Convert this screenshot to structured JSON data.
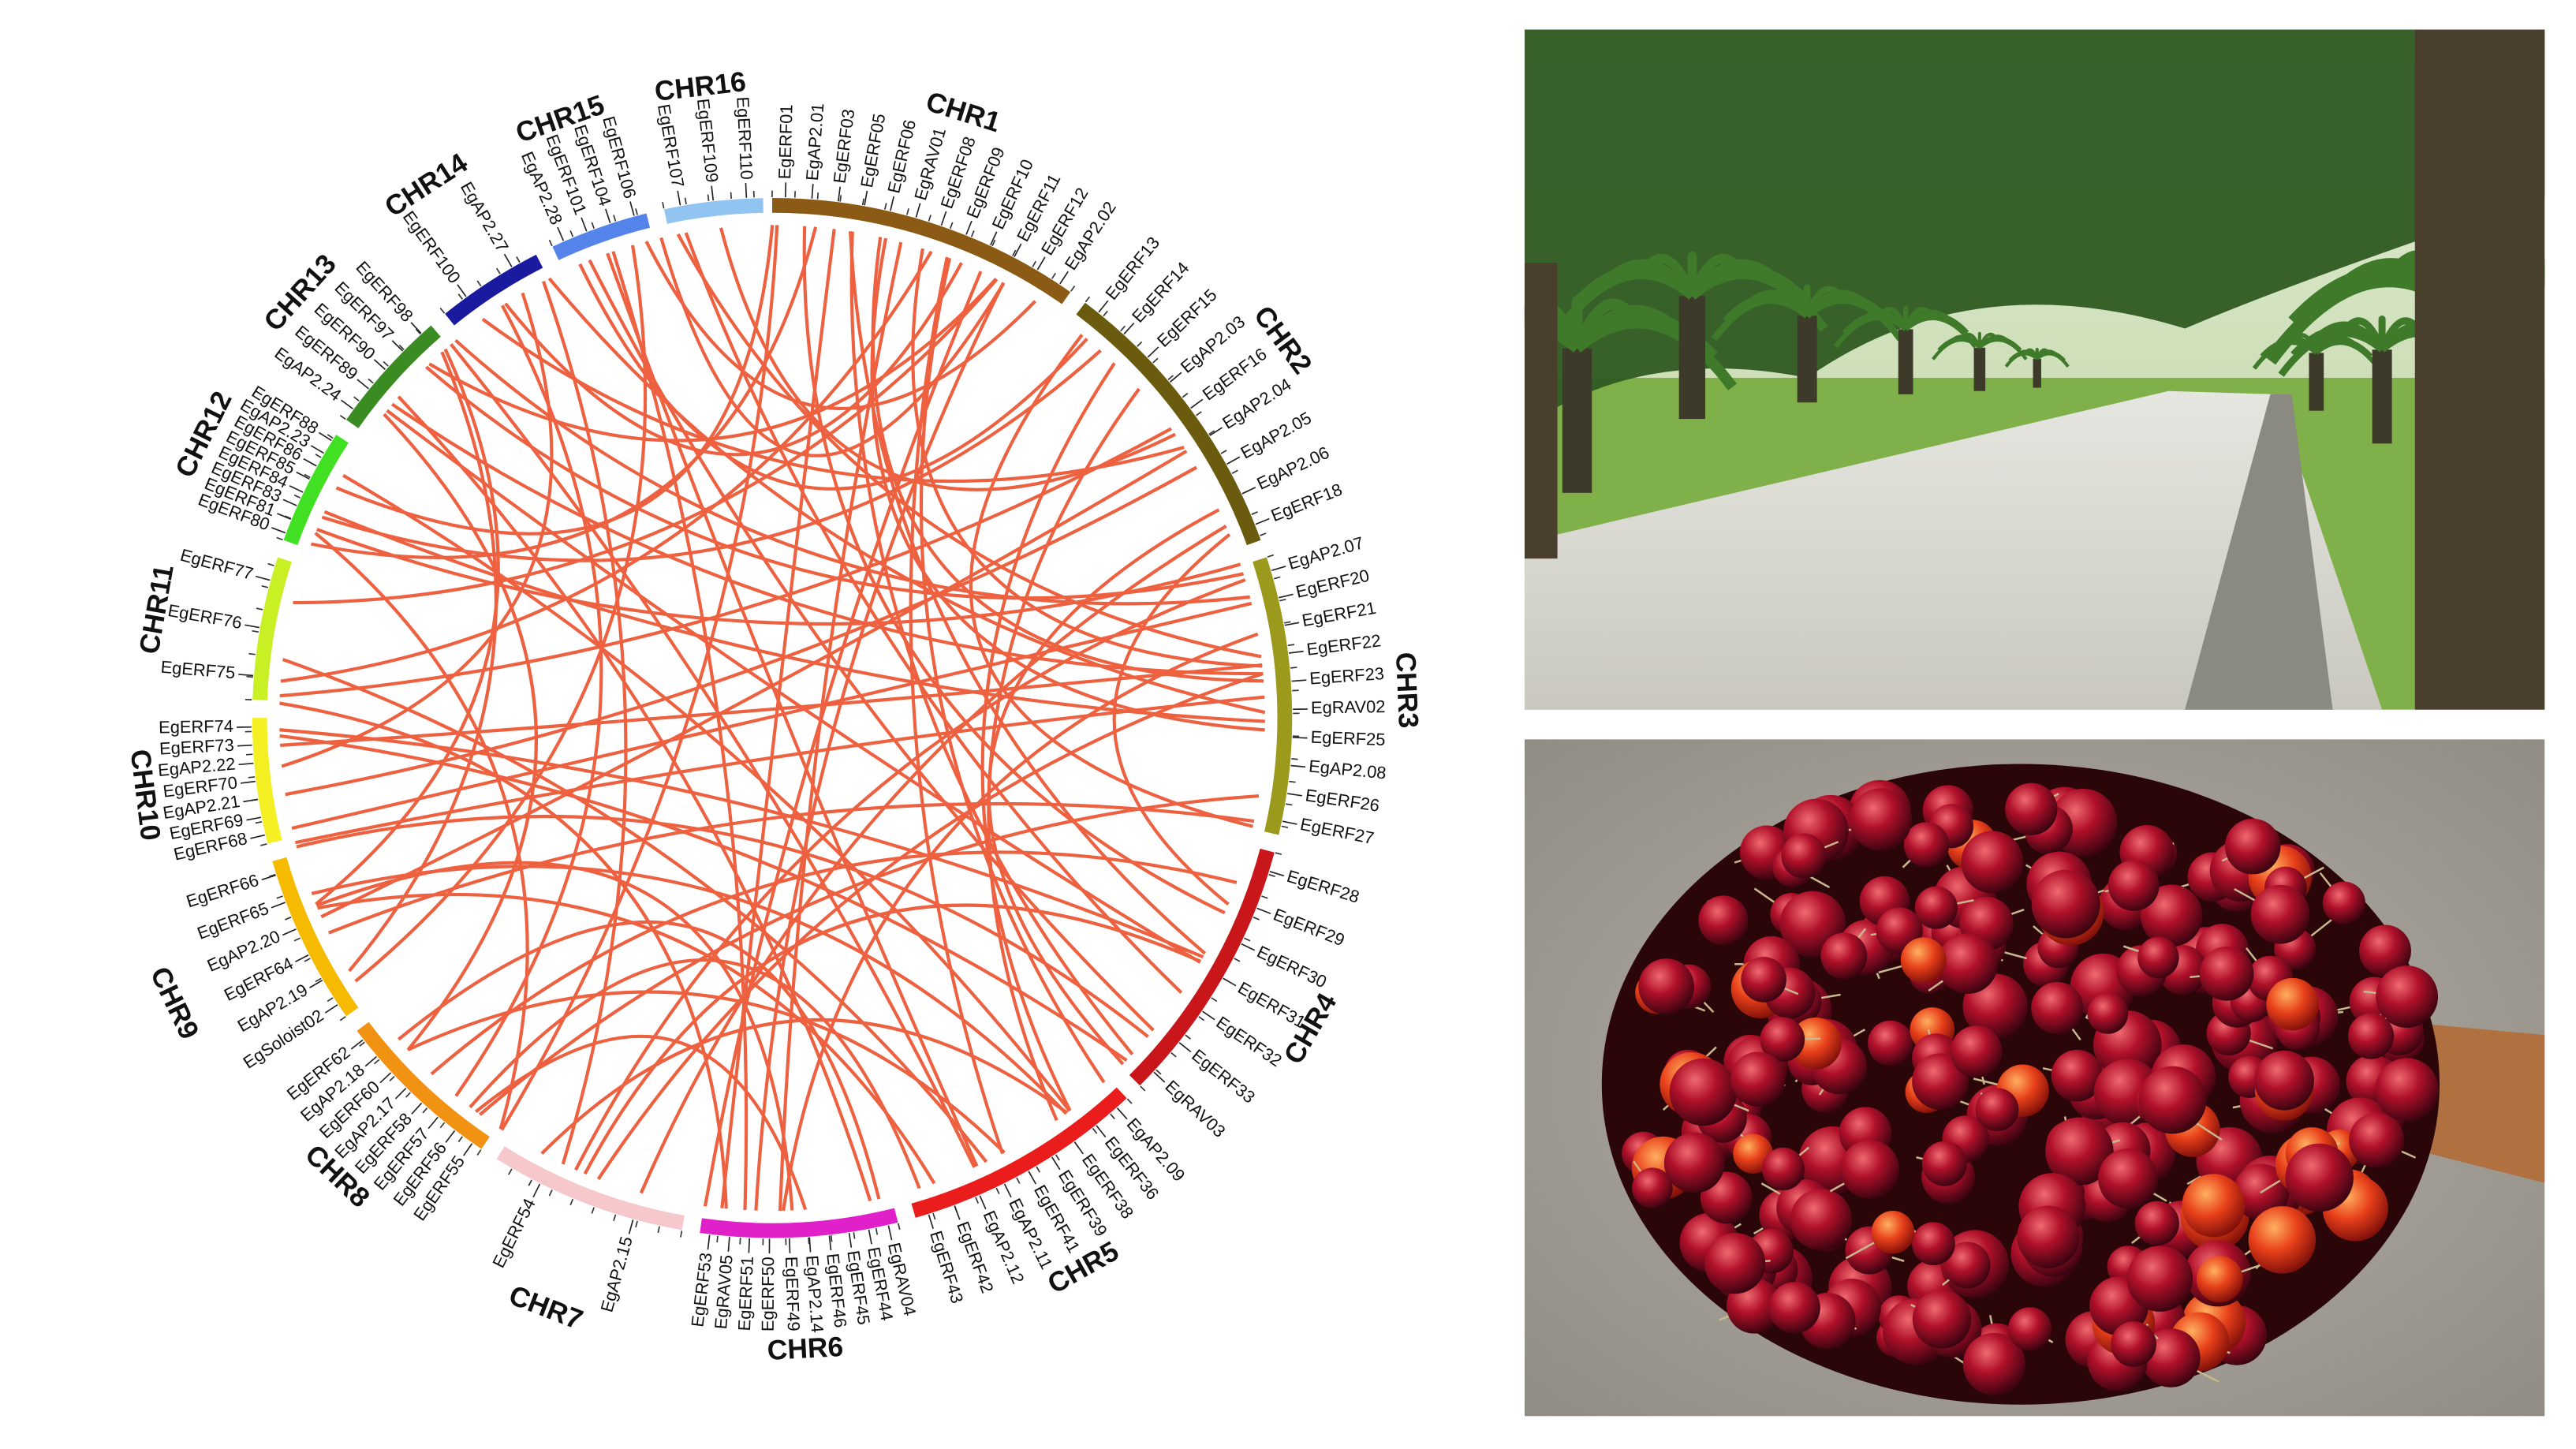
{
  "chromosomes": [
    {
      "name": "CHR1",
      "genes": [
        "EgERF01",
        "EgAP2.01",
        "EgERF03",
        "EgERF05",
        "EgERF06",
        "EgRAV01",
        "EgERF08",
        "EgERF09",
        "EgERF10",
        "EgERF11",
        "EgERF12",
        "EgAP2.02"
      ]
    },
    {
      "name": "CHR2",
      "genes": [
        "EgERF13",
        "EgERF14",
        "EgERF15",
        "EgAP2.03",
        "EgERF16",
        "EgAP2.04",
        "EgAP2.05",
        "EgAP2.06",
        "EgERF18"
      ]
    },
    {
      "name": "CHR3",
      "genes": [
        "EgAP2.07",
        "EgERF20",
        "EgERF21",
        "EgERF22",
        "EgERF23",
        "EgRAV02",
        "EgERF25",
        "EgAP2.08",
        "EgERF26",
        "EgERF27"
      ]
    },
    {
      "name": "CHR4",
      "genes": [
        "EgERF28",
        "EgERF29",
        "EgERF30",
        "EgERF31",
        "EgERF32",
        "EgERF33",
        "EgRAV03"
      ]
    },
    {
      "name": "CHR5",
      "genes": [
        "EgAP2.09",
        "EgERF36",
        "EgERF38",
        "EgERF39",
        "EgERF41",
        "EgAP2.11",
        "EgAP2.12",
        "EgERF42",
        "EgERF43"
      ]
    },
    {
      "name": "CHR6",
      "genes": [
        "EgRAV04",
        "EgERF44",
        "EgERF45",
        "EgERF46",
        "EgAP2.14",
        "EgERF49",
        "EgERF50",
        "EgERF51",
        "EgRAV05",
        "EgERF53"
      ]
    },
    {
      "name": "CHR7",
      "genes": [
        "EgAP2.15",
        "EgERF54"
      ]
    },
    {
      "name": "CHR8",
      "genes": [
        "EgERF55",
        "EgERF56",
        "EgERF57",
        "EgERF58",
        "EgAP2.17",
        "EgERF60",
        "EgAP2.18",
        "EgERF62"
      ]
    },
    {
      "name": "CHR9",
      "genes": [
        "EgSoloist02",
        "EgAP2.19",
        "EgERF64",
        "EgAP2.20",
        "EgERF65",
        "EgERF66"
      ]
    },
    {
      "name": "CHR10",
      "genes": [
        "EgERF68",
        "EgERF69",
        "EgAP2.21",
        "EgERF70",
        "EgAP2.22",
        "EgERF73",
        "EgERF74"
      ]
    },
    {
      "name": "CHR11",
      "genes": [
        "EgERF75",
        "EgERF76",
        "EgERF77"
      ]
    },
    {
      "name": "CHR12",
      "genes": [
        "EgERF80",
        "EgERF81",
        "EgERF83",
        "EgERF84",
        "EgERF85",
        "EgERF86",
        "EgAP2.23",
        "EgERF88"
      ]
    },
    {
      "name": "CHR13",
      "genes": [
        "EgAP2.24",
        "EgERF89",
        "EgERF90",
        "EgERF97",
        "EgERF98"
      ]
    },
    {
      "name": "CHR14",
      "genes": [
        "EgERF100",
        "EgAP2.27"
      ]
    },
    {
      "name": "CHR15",
      "genes": [
        "EgAP2.28",
        "EgERF101",
        "EgERF104",
        "EgERF106"
      ]
    },
    {
      "name": "CHR16",
      "genes": [
        "EgERF107",
        "EgERF109",
        "EgERF110"
      ]
    }
  ]
}
